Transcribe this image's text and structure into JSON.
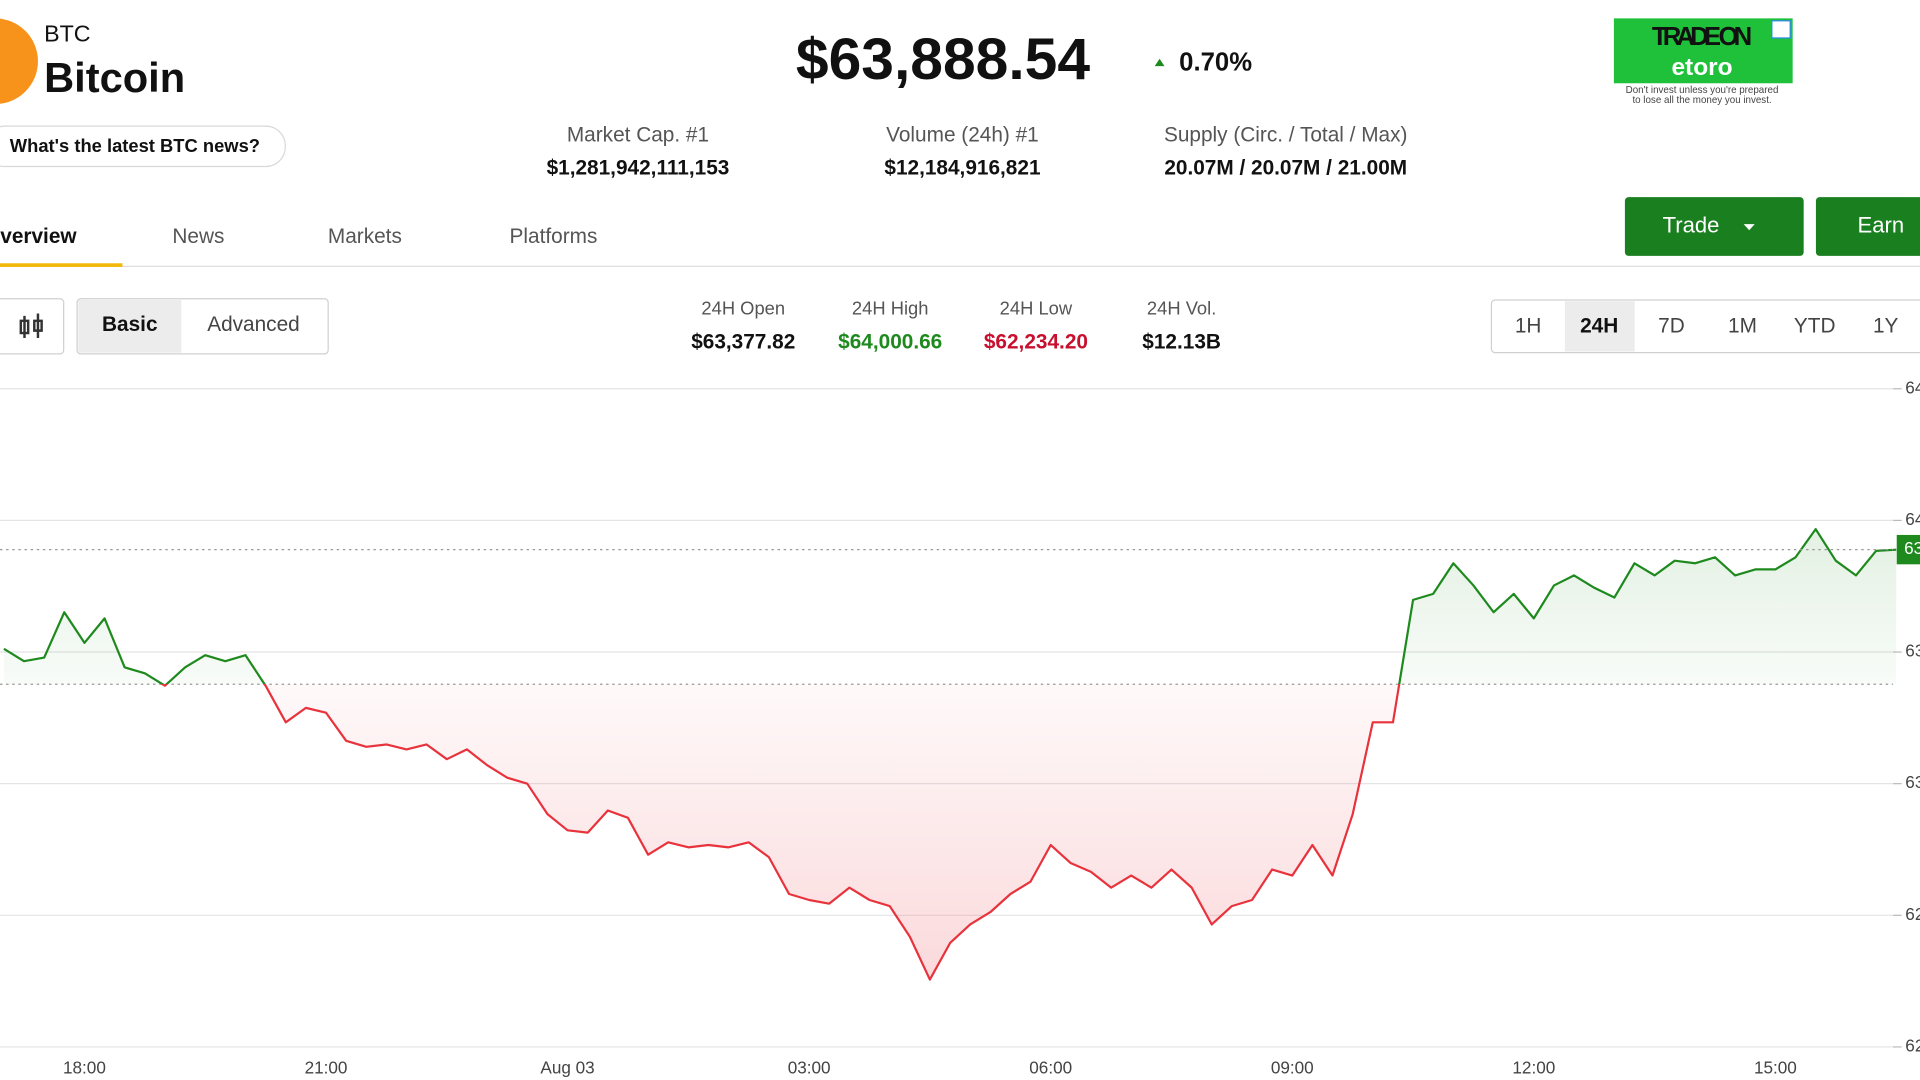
{
  "header": {
    "symbol": "BTC",
    "name": "Bitcoin",
    "price": "$63,888.54",
    "change": "0.70%",
    "news_button": "What's the latest BTC news?"
  },
  "ad": {
    "line1": "TRADE ON",
    "brand": "etoro",
    "disclaimer_1": "Don't invest unless you're prepared",
    "disclaimer_2": "to lose all the money you invest."
  },
  "stats": [
    {
      "label": "Market Cap. #1",
      "value": "$1,281,942,111,153"
    },
    {
      "label": "Volume (24h) #1",
      "value": "$12,184,916,821"
    },
    {
      "label": "Supply (Circ. / Total / Max)",
      "value": "20.07M / 20.07M / 21.00M"
    }
  ],
  "tabs": [
    "Overview",
    "News",
    "Markets",
    "Platforms"
  ],
  "actions": [
    "Trade",
    "Earn"
  ],
  "chart_modes": [
    "Basic",
    "Advanced"
  ],
  "day_stats": [
    {
      "label": "24H Open",
      "value": "$63,377.82"
    },
    {
      "label": "24H High",
      "value": "$64,000.66"
    },
    {
      "label": "24H Low",
      "value": "$62,234.20"
    },
    {
      "label": "24H Vol.",
      "value": "$12.13B"
    }
  ],
  "ranges": [
    "1H",
    "24H",
    "7D",
    "1M",
    "YTD",
    "1Y"
  ],
  "chart_data": {
    "type": "line",
    "categories": [
      null,
      null,
      null,
      null,
      "18:00",
      null,
      null,
      null,
      null,
      null,
      null,
      null,
      null,
      null,
      null,
      null,
      "21:00",
      null,
      null,
      null,
      null,
      null,
      null,
      null,
      null,
      null,
      null,
      null,
      "Aug 03",
      null,
      null,
      null,
      null,
      null,
      null,
      null,
      null,
      null,
      null,
      null,
      "03:00",
      null,
      null,
      null,
      null,
      null,
      null,
      null,
      null,
      null,
      null,
      null,
      "06:00",
      null,
      null,
      null,
      null,
      null,
      null,
      null,
      null,
      null,
      null,
      null,
      "09:00",
      null,
      null,
      null,
      null,
      null,
      null,
      null,
      null,
      null,
      null,
      null,
      "12:00",
      null,
      null,
      null,
      null,
      null,
      null,
      null,
      null,
      null,
      null,
      null,
      "15:00",
      null,
      null,
      null,
      null,
      null,
      null
    ],
    "values": [
      63512,
      63465,
      63479,
      63651,
      63535,
      63628,
      63442,
      63419,
      63372,
      63442,
      63488,
      63465,
      63488,
      63372,
      63233,
      63288,
      63270,
      63163,
      63140,
      63149,
      63130,
      63149,
      63093,
      63130,
      63070,
      63023,
      63000,
      62884,
      62823,
      62814,
      62898,
      62870,
      62730,
      62777,
      62758,
      62767,
      62758,
      62777,
      62721,
      62581,
      62558,
      62544,
      62605,
      62558,
      62535,
      62419,
      62256,
      62395,
      62465,
      62512,
      62581,
      62628,
      62767,
      62698,
      62665,
      62605,
      62651,
      62605,
      62674,
      62605,
      62465,
      62535,
      62558,
      62674,
      62651,
      62767,
      62651,
      62884,
      63233,
      63233,
      63698,
      63721,
      63837,
      63753,
      63651,
      63721,
      63628,
      63753,
      63791,
      63744,
      63707,
      63837,
      63791,
      63847,
      63837,
      63860,
      63791,
      63814,
      63814,
      63860,
      63967,
      63847,
      63791,
      63884,
      63889
    ],
    "baseline": 63377.82,
    "color_up": "#1e8a1e",
    "color_down": "#e8323c",
    "ylim": [
      61980,
      64590
    ],
    "yticks": [
      {
        "value": 62000,
        "label": "62"
      },
      {
        "value": 62500,
        "label": "62"
      },
      {
        "value": 63000,
        "label": "63"
      },
      {
        "value": 63500,
        "label": "63"
      },
      {
        "value": 64000,
        "label": "64"
      },
      {
        "value": 64500,
        "label": "64"
      }
    ],
    "grid": true,
    "price_tag": "63"
  }
}
